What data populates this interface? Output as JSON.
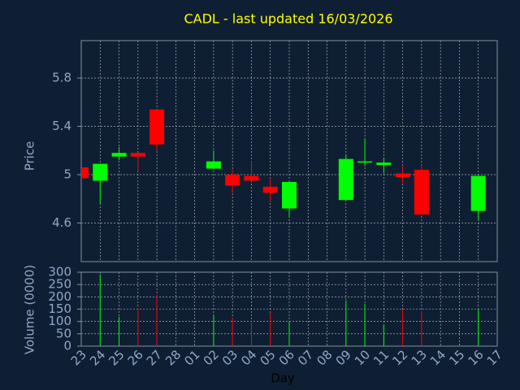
{
  "chart_data": {
    "type": "candlestick",
    "title": "CADL - last updated 16/03/2026",
    "xlabel": "Day",
    "ylabel": "Price",
    "y2label": "Volume (0000)",
    "categories": [
      "23",
      "24",
      "25",
      "26",
      "27",
      "28",
      "01",
      "02",
      "03",
      "04",
      "05",
      "06",
      "07",
      "08",
      "09",
      "10",
      "11",
      "12",
      "13",
      "14",
      "15",
      "16",
      "17"
    ],
    "open": [
      5.06,
      4.95,
      5.15,
      5.18,
      5.54,
      null,
      null,
      5.05,
      5.0,
      4.99,
      4.9,
      4.72,
      null,
      null,
      4.79,
      5.1,
      5.08,
      5.01,
      5.04,
      null,
      null,
      4.7,
      null
    ],
    "high": [
      5.06,
      5.09,
      5.23,
      5.18,
      5.54,
      null,
      null,
      5.2,
      5.04,
      5.11,
      4.97,
      4.94,
      null,
      null,
      5.17,
      5.3,
      5.14,
      5.07,
      5.08,
      null,
      null,
      4.99,
      null
    ],
    "low": [
      4.97,
      4.76,
      5.12,
      5.03,
      5.2,
      null,
      null,
      5.05,
      4.85,
      4.95,
      4.77,
      4.65,
      null,
      null,
      4.79,
      5.07,
      5.01,
      4.93,
      4.67,
      null,
      null,
      4.62,
      null
    ],
    "close": [
      4.97,
      5.09,
      5.18,
      5.15,
      5.25,
      null,
      null,
      5.11,
      4.91,
      4.95,
      4.85,
      4.94,
      null,
      null,
      5.13,
      5.11,
      5.1,
      4.98,
      4.67,
      null,
      null,
      4.99,
      null
    ],
    "volume": [
      null,
      290,
      119,
      155,
      208,
      null,
      null,
      122,
      115,
      105,
      135,
      99,
      null,
      null,
      185,
      172,
      86,
      148,
      142,
      null,
      null,
      152,
      null
    ],
    "up_color": "#00ff00",
    "down_color": "#ff0000",
    "ylim": [
      4.28,
      6.11
    ],
    "yticks": [
      4.6,
      5,
      5.4,
      5.8
    ],
    "y2lim": [
      0,
      300
    ],
    "y2ticks": [
      0,
      50,
      100,
      150,
      200,
      250,
      300
    ],
    "grid": true
  }
}
